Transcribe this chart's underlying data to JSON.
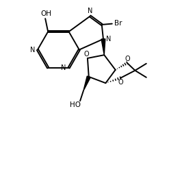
{
  "bg_color": "#ffffff",
  "line_color": "#000000",
  "line_width": 1.4,
  "figsize": [
    2.66,
    2.8
  ],
  "dpi": 100,
  "xlim": [
    0,
    10
  ],
  "ylim": [
    0,
    10.5
  ]
}
